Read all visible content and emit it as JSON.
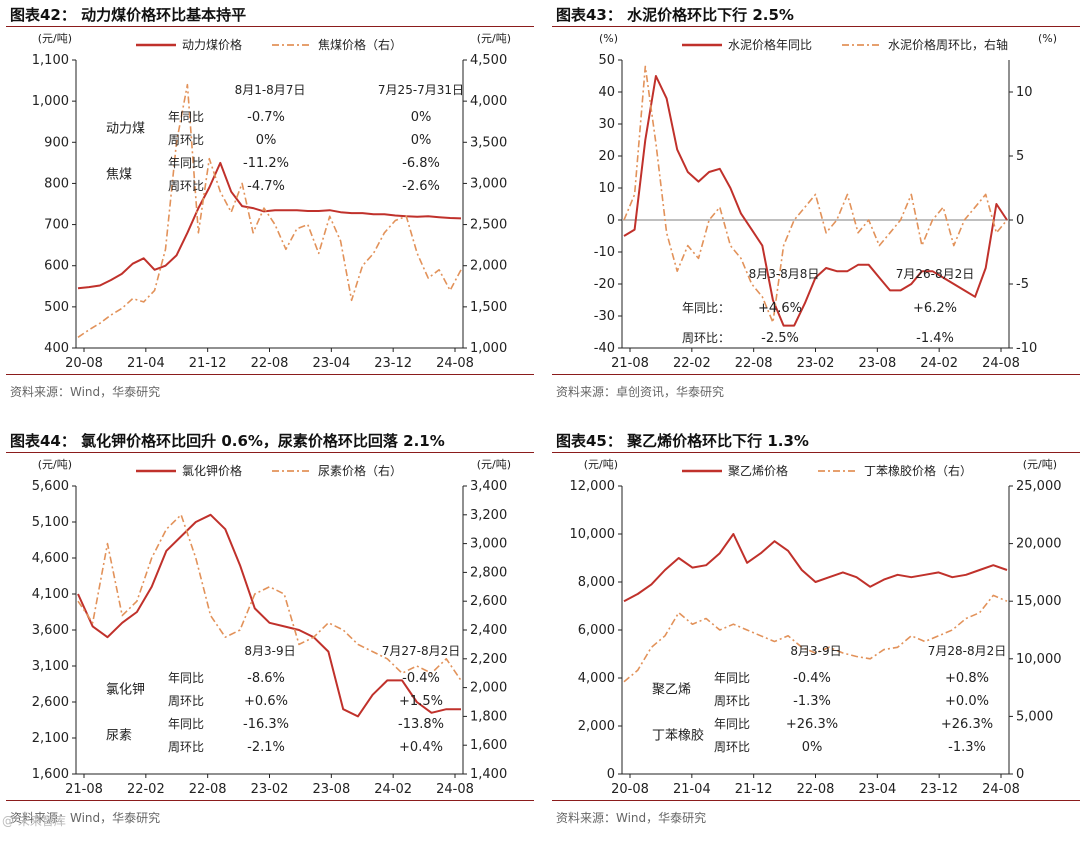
{
  "colors": {
    "primary": "#c0312b",
    "secondary": "#e2925a",
    "axis": "#222222",
    "zero": "#999999",
    "title": "#111111"
  },
  "watermark": "@ 未来智库",
  "charts": [
    {
      "title": "图表42：  动力煤价格环比基本持平",
      "source": "资料来源：Wind，华泰研究",
      "chart_data": {
        "type": "line",
        "left_unit": "(元/吨)",
        "right_unit": "(元/吨)",
        "ylim_left": [
          400,
          1100
        ],
        "yticks_left": [
          "400",
          "500",
          "600",
          "700",
          "800",
          "900",
          "1,000",
          "1,100"
        ],
        "ylim_right": [
          1000,
          4500
        ],
        "yticks_right": [
          "1,000",
          "1,500",
          "2,000",
          "2,500",
          "3,000",
          "3,500",
          "4,000",
          "4,500"
        ],
        "xticks": [
          "20-08",
          "21-04",
          "21-12",
          "22-08",
          "23-04",
          "23-12",
          "24-08"
        ],
        "series": [
          {
            "name": "动力煤价格",
            "axis": "left",
            "style": "solid",
            "values": [
              545,
              548,
              552,
              565,
              580,
              605,
              618,
              590,
              600,
              625,
              680,
              740,
              790,
              850,
              780,
              745,
              740,
              732,
              735,
              735,
              735,
              733,
              733,
              735,
              730,
              728,
              728,
              725,
              725,
              722,
              720,
              719,
              720,
              718,
              716,
              715
            ]
          },
          {
            "name": "焦煤价格（右）",
            "axis": "right",
            "style": "dashdot",
            "values": [
              1130,
              1220,
              1300,
              1400,
              1480,
              1600,
              1560,
              1700,
              2200,
              3500,
              4200,
              2400,
              3300,
              2900,
              2650,
              3000,
              2400,
              2700,
              2500,
              2200,
              2450,
              2500,
              2150,
              2600,
              2300,
              1580,
              2000,
              2150,
              2400,
              2550,
              2600,
              2150,
              1850,
              1950,
              1700,
              1950
            ]
          }
        ],
        "table": {
          "headers": [
            "8月1-8月7日",
            "7月25-7月31日"
          ],
          "groups": [
            {
              "label": "动力煤",
              "rows": [
                {
                  "label": "年同比",
                  "v1": "-0.7%",
                  "v2": "0%"
                },
                {
                  "label": "周环比",
                  "v1": "0%",
                  "v2": "0%"
                }
              ]
            },
            {
              "label": "焦煤",
              "rows": [
                {
                  "label": "年同比",
                  "v1": "-11.2%",
                  "v2": "-6.8%"
                },
                {
                  "label": "周环比",
                  "v1": "-4.7%",
                  "v2": "-2.6%"
                }
              ]
            }
          ]
        }
      }
    },
    {
      "title": "图表43：  水泥价格环比下行 2.5%",
      "source": "资料来源：卓创资讯，华泰研究",
      "chart_data": {
        "type": "line",
        "left_unit": "(%)",
        "right_unit": "(%)",
        "ylim_left": [
          -40,
          50
        ],
        "yticks_left": [
          "-40",
          "-30",
          "-20",
          "-10",
          "0",
          "10",
          "20",
          "30",
          "40",
          "50"
        ],
        "ylim_right": [
          -10,
          12.5
        ],
        "yticks_right": [
          "-10",
          "-5",
          "0",
          "5",
          "10"
        ],
        "zero_line": true,
        "xticks": [
          "21-08",
          "22-02",
          "22-08",
          "23-02",
          "23-08",
          "24-02",
          "24-08"
        ],
        "series": [
          {
            "name": "水泥价格年同比",
            "axis": "left",
            "style": "solid",
            "values": [
              -5,
              -3,
              25,
              45,
              38,
              22,
              15,
              12,
              15,
              16,
              10,
              2,
              -3,
              -8,
              -25,
              -33,
              -33,
              -26,
              -18,
              -15,
              -16,
              -16,
              -14,
              -14,
              -18,
              -22,
              -22,
              -20,
              -16,
              -16,
              -18,
              -20,
              -22,
              -24,
              -15,
              5,
              0
            ]
          },
          {
            "name": "水泥价格周环比，右轴",
            "axis": "right",
            "style": "dashdot",
            "values": [
              0,
              2,
              12,
              6,
              -1,
              -4,
              -2,
              -3,
              0,
              1,
              -2,
              -3,
              -5,
              -6,
              -8,
              -2,
              0,
              1,
              2,
              -1,
              0,
              2,
              -1,
              0,
              -2,
              -1,
              0,
              2,
              -2,
              0,
              1,
              -2,
              0,
              1,
              2,
              -1,
              0
            ]
          }
        ],
        "table": {
          "headers": [
            "8月3-8月8日",
            "7月26-8月2日"
          ],
          "groups": [
            {
              "label": "",
              "rows": [
                {
                  "label": "年同比：",
                  "v1": "+4.6%",
                  "v2": "+6.2%"
                },
                {
                  "label": "周环比：",
                  "v1": "-2.5%",
                  "v2": "-1.4%"
                }
              ]
            }
          ]
        }
      }
    },
    {
      "title": "图表44：  氯化钾价格环比回升 0.6%，尿素价格环比回落 2.1%",
      "source": "资料来源：Wind，华泰研究",
      "chart_data": {
        "type": "line",
        "left_unit": "(元/吨)",
        "right_unit": "(元/吨)",
        "ylim_left": [
          1600,
          5600
        ],
        "yticks_left": [
          "1,600",
          "2,100",
          "2,600",
          "3,100",
          "3,600",
          "4,100",
          "4,600",
          "5,100",
          "5,600"
        ],
        "ylim_right": [
          1400,
          3400
        ],
        "yticks_right": [
          "1,400",
          "1,600",
          "1,800",
          "2,000",
          "2,200",
          "2,400",
          "2,600",
          "2,800",
          "3,000",
          "3,200",
          "3,400"
        ],
        "xticks": [
          "21-08",
          "22-02",
          "22-08",
          "23-02",
          "23-08",
          "24-02",
          "24-08"
        ],
        "series": [
          {
            "name": "氯化钾价格",
            "axis": "left",
            "style": "solid",
            "values": [
              4100,
              3650,
              3500,
              3700,
              3850,
              4200,
              4700,
              4900,
              5100,
              5200,
              5000,
              4500,
              3900,
              3700,
              3650,
              3600,
              3500,
              3300,
              2500,
              2400,
              2700,
              2900,
              2900,
              2600,
              2450,
              2500,
              2500
            ]
          },
          {
            "name": "尿素价格（右）",
            "axis": "right",
            "style": "dashdot",
            "values": [
              2600,
              2450,
              3000,
              2500,
              2600,
              2900,
              3100,
              3200,
              2900,
              2500,
              2350,
              2400,
              2650,
              2700,
              2650,
              2300,
              2350,
              2450,
              2400,
              2300,
              2250,
              2200,
              2100,
              2150,
              2100,
              2200,
              2050
            ]
          }
        ],
        "table": {
          "headers": [
            "8月3-9日",
            "7月27-8月2日"
          ],
          "groups": [
            {
              "label": "氯化钾",
              "rows": [
                {
                  "label": "年同比",
                  "v1": "-8.6%",
                  "v2": "-0.4%"
                },
                {
                  "label": "周环比",
                  "v1": "+0.6%",
                  "v2": "+1.5%"
                }
              ]
            },
            {
              "label": "尿素",
              "rows": [
                {
                  "label": "年同比",
                  "v1": "-16.3%",
                  "v2": "-13.8%"
                },
                {
                  "label": "周环比",
                  "v1": "-2.1%",
                  "v2": "+0.4%"
                }
              ]
            }
          ]
        }
      }
    },
    {
      "title": "图表45：  聚乙烯价格环比下行 1.3%",
      "source": "资料来源：Wind，华泰研究",
      "chart_data": {
        "type": "line",
        "left_unit": "(元/吨)",
        "right_unit": "(元/吨)",
        "ylim_left": [
          0,
          12000
        ],
        "yticks_left": [
          "0",
          "2,000",
          "4,000",
          "6,000",
          "8,000",
          "10,000",
          "12,000"
        ],
        "ylim_right": [
          0,
          25000
        ],
        "yticks_right": [
          "0",
          "5,000",
          "10,000",
          "15,000",
          "20,000",
          "25,000"
        ],
        "xticks": [
          "20-08",
          "21-04",
          "21-12",
          "22-08",
          "23-04",
          "23-12",
          "24-08"
        ],
        "series": [
          {
            "name": "聚乙烯价格",
            "axis": "left",
            "style": "solid",
            "values": [
              7200,
              7500,
              7900,
              8500,
              9000,
              8600,
              8700,
              9200,
              10000,
              8800,
              9200,
              9700,
              9300,
              8500,
              8000,
              8200,
              8400,
              8200,
              7800,
              8100,
              8300,
              8200,
              8300,
              8400,
              8200,
              8300,
              8500,
              8700,
              8500
            ]
          },
          {
            "name": "丁苯橡胶价格（右）",
            "axis": "right",
            "style": "dashdot",
            "values": [
              8000,
              9000,
              11000,
              12000,
              14000,
              13000,
              13500,
              12500,
              13000,
              12500,
              12000,
              11500,
              12000,
              11000,
              10500,
              11000,
              10500,
              10200,
              10000,
              10800,
              11000,
              12000,
              11500,
              12000,
              12500,
              13500,
              14000,
              15500,
              15000
            ]
          }
        ],
        "table": {
          "headers": [
            "8月3-9日",
            "7月28-8月2日"
          ],
          "groups": [
            {
              "label": "聚乙烯",
              "rows": [
                {
                  "label": "年同比",
                  "v1": "-0.4%",
                  "v2": "+0.8%"
                },
                {
                  "label": "周环比",
                  "v1": "-1.3%",
                  "v2": "+0.0%"
                }
              ]
            },
            {
              "label": "丁苯橡胶",
              "rows": [
                {
                  "label": "年同比",
                  "v1": "+26.3%",
                  "v2": "+26.3%"
                },
                {
                  "label": "周环比",
                  "v1": "0%",
                  "v2": "-1.3%"
                }
              ]
            }
          ]
        }
      }
    }
  ]
}
